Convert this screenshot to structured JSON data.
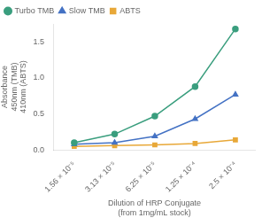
{
  "chart_data": {
    "type": "line",
    "x_label": "Dilution of HRP Conjugate\n(from 1mg/mL stock)",
    "y_label": "Absorbance\n450nm (TMB)\n410nm (ABTS)",
    "x": [
      1.56e-05,
      3.13e-05,
      6.25e-05,
      0.000125,
      0.00025
    ],
    "series": [
      {
        "name": "Turbo TMB",
        "color": "#3a9e7e",
        "marker": "circle",
        "values": [
          0.1,
          0.22,
          0.47,
          0.88,
          1.68
        ]
      },
      {
        "name": "Slow TMB",
        "color": "#4472c4",
        "marker": "triangle",
        "values": [
          0.08,
          0.1,
          0.19,
          0.43,
          0.77
        ]
      },
      {
        "name": "ABTS",
        "color": "#e8a838",
        "marker": "square",
        "values": [
          0.05,
          0.06,
          0.07,
          0.09,
          0.14
        ]
      }
    ],
    "log": "x",
    "xlim": [
      1.1e-05,
      0.00035
    ],
    "xticks": [
      {
        "value": 1.56e-05,
        "label": "1.56 × 10⁻⁵"
      },
      {
        "value": 3.13e-05,
        "label": "3.13 × 10⁻⁵"
      },
      {
        "value": 6.25e-05,
        "label": "6.25 × 10⁻⁵"
      },
      {
        "value": 0.000125,
        "label": "1.25 × 10⁻⁴"
      },
      {
        "value": 0.00025,
        "label": "2.5 × 10⁻⁴"
      }
    ],
    "ylim": [
      0.0,
      1.75
    ],
    "yticks": [
      {
        "value": 0,
        "label": "0.0"
      },
      0.5,
      {
        "value": 1,
        "label": "1.0"
      },
      1.5
    ],
    "legend": "upper left",
    "grid": false
  }
}
